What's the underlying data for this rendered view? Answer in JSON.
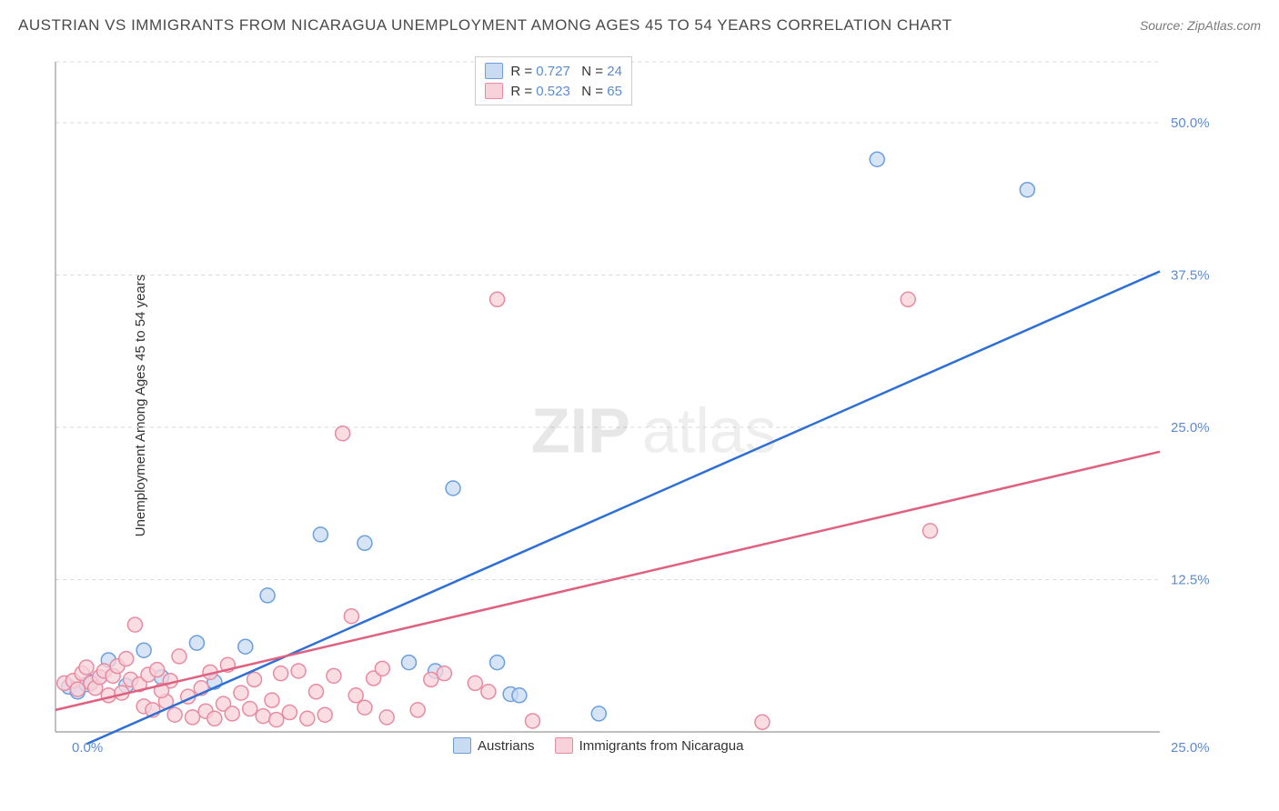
{
  "header": {
    "title": "AUSTRIAN VS IMMIGRANTS FROM NICARAGUA UNEMPLOYMENT AMONG AGES 45 TO 54 YEARS CORRELATION CHART",
    "source": "Source: ZipAtlas.com"
  },
  "ylabel": "Unemployment Among Ages 45 to 54 years",
  "watermark": {
    "bold": "ZIP",
    "light": "atlas"
  },
  "chart": {
    "type": "scatter",
    "background_color": "#ffffff",
    "grid_color": "#d9d9d9",
    "axis_color": "#999999",
    "tick_label_color": "#5b8bd4",
    "xlim": [
      0,
      25
    ],
    "ylim": [
      0,
      55
    ],
    "ytick_values": [
      12.5,
      25.0,
      37.5,
      50.0
    ],
    "ytick_labels": [
      "12.5%",
      "25.0%",
      "37.5%",
      "50.0%"
    ],
    "xtick_label_left": "0.0%",
    "xtick_label_right": "25.0%",
    "marker_radius": 8,
    "marker_stroke_width": 1.5,
    "line_width": 2.5,
    "series": [
      {
        "name": "Austrians",
        "fill": "#c9dbf1",
        "stroke": "#6b9fde",
        "line_color": "#2e6fd6",
        "R": "0.727",
        "N": "24",
        "regression": {
          "x1": 0.7,
          "y1": -1.0,
          "x2": 25.0,
          "y2": 37.8
        },
        "points": [
          [
            0.3,
            3.7
          ],
          [
            0.5,
            3.3
          ],
          [
            0.7,
            3.9
          ],
          [
            0.8,
            4.1
          ],
          [
            1.0,
            4.5
          ],
          [
            1.2,
            5.9
          ],
          [
            1.6,
            3.8
          ],
          [
            2.0,
            6.7
          ],
          [
            2.4,
            4.5
          ],
          [
            3.2,
            7.3
          ],
          [
            3.6,
            4.1
          ],
          [
            4.3,
            7.0
          ],
          [
            4.8,
            11.2
          ],
          [
            6.0,
            16.2
          ],
          [
            7.0,
            15.5
          ],
          [
            8.0,
            5.7
          ],
          [
            9.0,
            20.0
          ],
          [
            8.6,
            5.0
          ],
          [
            10.0,
            5.7
          ],
          [
            10.3,
            3.1
          ],
          [
            10.5,
            3.0
          ],
          [
            12.3,
            1.5
          ],
          [
            18.6,
            47.0
          ],
          [
            22.0,
            44.5
          ]
        ]
      },
      {
        "name": "Immigrants from Nicaragua",
        "fill": "#f7d2da",
        "stroke": "#e88ba1",
        "line_color": "#e0607f",
        "R": "0.523",
        "N": "65",
        "regression": {
          "x1": 0.0,
          "y1": 1.8,
          "x2": 25.0,
          "y2": 23.0
        },
        "points": [
          [
            0.2,
            4.0
          ],
          [
            0.4,
            4.2
          ],
          [
            0.5,
            3.5
          ],
          [
            0.6,
            4.8
          ],
          [
            0.7,
            5.3
          ],
          [
            0.8,
            4.0
          ],
          [
            0.9,
            3.6
          ],
          [
            1.0,
            4.5
          ],
          [
            1.1,
            5.0
          ],
          [
            1.2,
            3.0
          ],
          [
            1.3,
            4.6
          ],
          [
            1.4,
            5.4
          ],
          [
            1.5,
            3.2
          ],
          [
            1.6,
            6.0
          ],
          [
            1.7,
            4.3
          ],
          [
            1.8,
            8.8
          ],
          [
            1.9,
            3.9
          ],
          [
            2.0,
            2.1
          ],
          [
            2.1,
            4.7
          ],
          [
            2.2,
            1.8
          ],
          [
            2.3,
            5.1
          ],
          [
            2.5,
            2.5
          ],
          [
            2.6,
            4.2
          ],
          [
            2.7,
            1.4
          ],
          [
            2.8,
            6.2
          ],
          [
            3.0,
            2.9
          ],
          [
            3.1,
            1.2
          ],
          [
            3.3,
            3.6
          ],
          [
            3.4,
            1.7
          ],
          [
            3.5,
            4.9
          ],
          [
            3.6,
            1.1
          ],
          [
            3.8,
            2.3
          ],
          [
            3.9,
            5.5
          ],
          [
            4.0,
            1.5
          ],
          [
            4.2,
            3.2
          ],
          [
            4.4,
            1.9
          ],
          [
            4.5,
            4.3
          ],
          [
            4.7,
            1.3
          ],
          [
            4.9,
            2.6
          ],
          [
            5.0,
            1.0
          ],
          [
            5.1,
            4.8
          ],
          [
            5.3,
            1.6
          ],
          [
            5.5,
            5.0
          ],
          [
            5.7,
            1.1
          ],
          [
            5.9,
            3.3
          ],
          [
            6.1,
            1.4
          ],
          [
            6.3,
            4.6
          ],
          [
            6.5,
            24.5
          ],
          [
            6.7,
            9.5
          ],
          [
            7.0,
            2.0
          ],
          [
            7.2,
            4.4
          ],
          [
            7.5,
            1.2
          ],
          [
            8.8,
            4.8
          ],
          [
            8.2,
            1.8
          ],
          [
            8.5,
            4.3
          ],
          [
            9.5,
            4.0
          ],
          [
            9.8,
            3.3
          ],
          [
            10.0,
            35.5
          ],
          [
            10.8,
            0.9
          ],
          [
            16.0,
            0.8
          ],
          [
            19.3,
            35.5
          ],
          [
            19.8,
            16.5
          ],
          [
            6.8,
            3.0
          ],
          [
            7.4,
            5.2
          ],
          [
            2.4,
            3.4
          ]
        ]
      }
    ]
  },
  "top_legend": {
    "r_label": "R =",
    "n_label": "N ="
  },
  "bottom_legend": {
    "items": [
      "Austrians",
      "Immigrants from Nicaragua"
    ]
  }
}
